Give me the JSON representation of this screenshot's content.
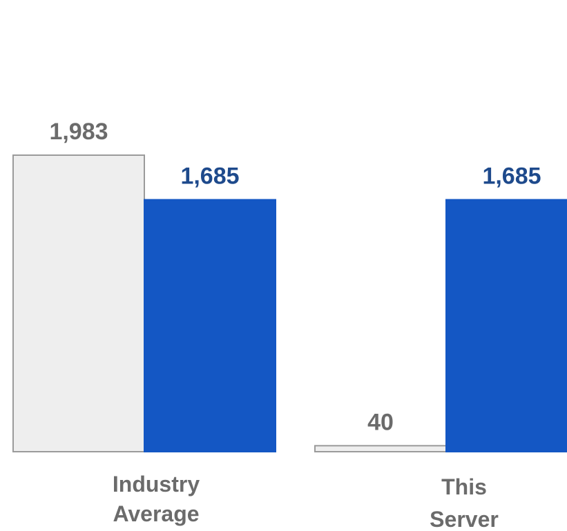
{
  "chart_data": {
    "type": "bar",
    "categories": [
      "Industry Average",
      "This Server"
    ],
    "category_label_lines": [
      [
        "Industry",
        "Average"
      ],
      [
        "This",
        "Server"
      ]
    ],
    "series": [
      {
        "values": [
          1983,
          40
        ],
        "value_labels": [
          "1,983",
          "40"
        ],
        "color": "#eeeeee",
        "stroke": "#9a9a9a",
        "label_color": "#6b6b6b"
      },
      {
        "values": [
          1685,
          1685
        ],
        "value_labels": [
          "1,685",
          "1,685"
        ],
        "color": "#1457c4",
        "stroke": "#1457c4",
        "label_color": "#1e4a8c"
      }
    ],
    "ylim": [
      0,
      1983
    ],
    "grid": false,
    "legend": "none"
  }
}
